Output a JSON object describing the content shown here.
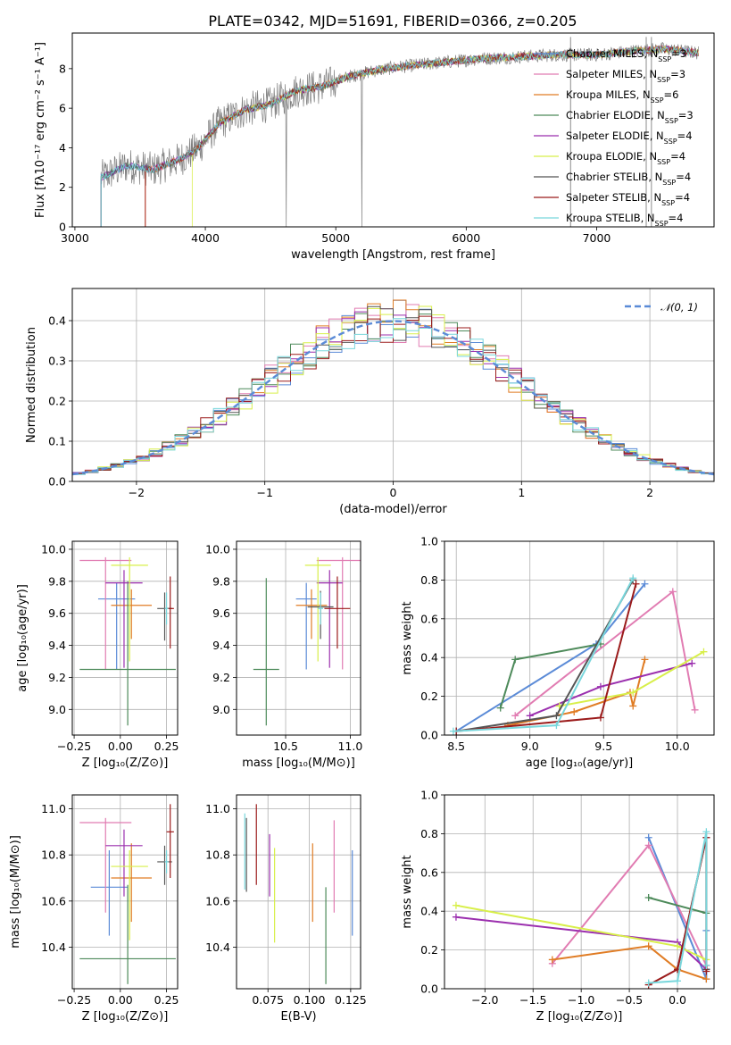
{
  "figure": {
    "title": "PLATE=0342, MJD=51691, FIBERID=0366, z=0.205",
    "models": [
      {
        "name": "Chabrier MILES",
        "nssp": "3",
        "color": "#5b8bd7"
      },
      {
        "name": "Salpeter MILES",
        "nssp": "3",
        "color": "#e17cb2"
      },
      {
        "name": "Kroupa MILES",
        "nssp": "6",
        "color": "#e07c24"
      },
      {
        "name": "Chabrier ELODIE",
        "nssp": "3",
        "color": "#4d8a5a"
      },
      {
        "name": "Salpeter ELODIE",
        "nssp": "4",
        "color": "#9b2fae"
      },
      {
        "name": "Kroupa ELODIE",
        "nssp": "4",
        "color": "#d8ef4a"
      },
      {
        "name": "Chabrier STELIB",
        "nssp": "4",
        "color": "#555555"
      },
      {
        "name": "Salpeter STELIB",
        "nssp": "4",
        "color": "#9b1b1b"
      },
      {
        "name": "Kroupa STELIB",
        "nssp": "4",
        "color": "#79d7dc"
      }
    ]
  },
  "chart_data": [
    {
      "id": "spectrum",
      "type": "line",
      "xlabel": "wavelength [Angstrom, rest frame]",
      "ylabel": "Flux [fλ10⁻¹⁷ erg cm⁻² s⁻¹ A⁻¹]",
      "xlim": [
        2980,
        7900
      ],
      "ylim": [
        0,
        9.8
      ],
      "xticks": [
        3000,
        4000,
        5000,
        6000,
        7000
      ],
      "yticks": [
        0,
        2,
        4,
        6,
        8
      ],
      "legend_position": "top-right",
      "continuum_x": [
        3200,
        3400,
        3600,
        3800,
        3950,
        4100,
        4300,
        4500,
        4700,
        4900,
        5100,
        5300,
        5500,
        5800,
        6100,
        6400,
        6700,
        7000,
        7300,
        7500,
        7780
      ],
      "continuum_y": [
        2.5,
        3.1,
        2.9,
        3.4,
        4.0,
        5.2,
        5.9,
        6.2,
        6.9,
        7.1,
        7.6,
        7.9,
        8.1,
        8.3,
        8.5,
        8.6,
        8.7,
        8.7,
        8.9,
        9.0,
        8.8
      ],
      "data_line": {
        "name": "data",
        "color": "#808080"
      }
    },
    {
      "id": "residuals",
      "type": "line",
      "xlabel": "(data-model)/error",
      "ylabel": "Normed distribution",
      "xlim": [
        -2.5,
        2.5
      ],
      "ylim": [
        0,
        0.48
      ],
      "xticks": [
        -2,
        -1,
        0,
        1,
        2
      ],
      "yticks": [
        0.0,
        0.1,
        0.2,
        0.3,
        0.4
      ],
      "legend_position": "top-right",
      "reference": {
        "name": "N(0,1)",
        "color": "#5b8bd7"
      }
    },
    {
      "id": "age-z",
      "type": "scatter",
      "xlabel": "Z [log₁₀(Z/Z⊙)]",
      "ylabel": "age  [log₁₀(age/yr)]",
      "xlim": [
        -0.26,
        0.31
      ],
      "ylim": [
        8.84,
        10.05
      ],
      "xticks": [
        -0.25,
        0.0,
        0.25
      ],
      "yticks": [
        9.0,
        9.2,
        9.4,
        9.6,
        9.8,
        10.0
      ],
      "points": [
        {
          "x": -0.02,
          "y": 9.69,
          "xerr": 0.1,
          "yerr": [
            0.44,
            0.1
          ],
          "c": 0
        },
        {
          "x": -0.08,
          "y": 9.93,
          "xerr": 0.14,
          "yerr": [
            0.68,
            0.02
          ],
          "c": 1
        },
        {
          "x": 0.06,
          "y": 9.65,
          "xerr": 0.11,
          "yerr": [
            0.21,
            0.1
          ],
          "c": 2
        },
        {
          "x": 0.04,
          "y": 9.25,
          "xerr": 0.26,
          "yerr": [
            0.35,
            0.55
          ],
          "c": 3
        },
        {
          "x": 0.02,
          "y": 9.79,
          "xerr": 0.1,
          "yerr": [
            0.53,
            0.08
          ],
          "c": 4
        },
        {
          "x": 0.05,
          "y": 9.9,
          "xerr": 0.1,
          "yerr": [
            0.6,
            0.05
          ],
          "c": 5
        },
        {
          "x": 0.24,
          "y": 9.63,
          "xerr": 0.04,
          "yerr": [
            0.2,
            0.1
          ],
          "c": 6
        },
        {
          "x": 0.27,
          "y": 9.63,
          "xerr": 0.02,
          "yerr": [
            0.25,
            0.2
          ],
          "c": 7
        },
        {
          "x": 0.25,
          "y": 9.63,
          "xerr": 0.01,
          "yerr": [
            0.1,
            0.1
          ],
          "c": 8
        }
      ]
    },
    {
      "id": "age-mass",
      "type": "scatter",
      "xlabel": "mass [log₁₀(M/M⊙)]",
      "ylabel": "",
      "xlim": [
        10.12,
        11.08
      ],
      "ylim": [
        8.84,
        10.05
      ],
      "xticks": [
        10.5,
        11.0
      ],
      "yticks": [
        9.0,
        9.2,
        9.4,
        9.6,
        9.8,
        10.0
      ],
      "points": [
        {
          "x": 10.66,
          "y": 9.69,
          "xerr": 0.08,
          "yerr": [
            0.44,
            0.1
          ],
          "c": 0
        },
        {
          "x": 10.94,
          "y": 9.93,
          "xerr": 0.2,
          "yerr": [
            0.68,
            0.02
          ],
          "c": 1
        },
        {
          "x": 10.7,
          "y": 9.65,
          "xerr": 0.12,
          "yerr": [
            0.21,
            0.1
          ],
          "c": 2
        },
        {
          "x": 10.35,
          "y": 9.25,
          "xerr": 0.1,
          "yerr": [
            0.35,
            0.57
          ],
          "c": 3
        },
        {
          "x": 10.84,
          "y": 9.79,
          "xerr": 0.1,
          "yerr": [
            0.53,
            0.08
          ],
          "c": 4
        },
        {
          "x": 10.75,
          "y": 9.9,
          "xerr": 0.1,
          "yerr": [
            0.6,
            0.05
          ],
          "c": 5
        },
        {
          "x": 10.77,
          "y": 9.64,
          "xerr": 0.1,
          "yerr": [
            0.2,
            0.1
          ],
          "c": 6
        },
        {
          "x": 10.9,
          "y": 9.63,
          "xerr": 0.1,
          "yerr": [
            0.25,
            0.2
          ],
          "c": 7
        },
        {
          "x": 10.77,
          "y": 9.63,
          "xerr": 0.02,
          "yerr": [
            0.1,
            0.1
          ],
          "c": 8
        }
      ]
    },
    {
      "id": "weight-age",
      "type": "line",
      "xlabel": "age  [log₁₀(age/yr)]",
      "ylabel": "mass weight",
      "xlim": [
        8.42,
        10.25
      ],
      "ylim": [
        0,
        1.0
      ],
      "xticks": [
        8.5,
        9.0,
        9.5,
        10.0
      ],
      "yticks": [
        0.0,
        0.2,
        0.4,
        0.6,
        0.8,
        1.0
      ],
      "series": [
        {
          "x": [
            8.5,
            9.45,
            9.78
          ],
          "y": [
            0.02,
            0.47,
            0.78
          ],
          "c": 0
        },
        {
          "x": [
            8.9,
            9.97,
            10.12
          ],
          "y": [
            0.1,
            0.74,
            0.13
          ],
          "c": 1
        },
        {
          "x": [
            8.85,
            9.3,
            9.68,
            9.7,
            9.78
          ],
          "y": [
            0.05,
            0.12,
            0.22,
            0.15,
            0.39
          ],
          "c": 2
        },
        {
          "x": [
            8.8,
            8.9,
            9.48
          ],
          "y": [
            0.14,
            0.39,
            0.47
          ],
          "c": 3
        },
        {
          "x": [
            9.0,
            9.48,
            10.1
          ],
          "y": [
            0.1,
            0.25,
            0.37
          ],
          "c": 4
        },
        {
          "x": [
            9.2,
            9.7,
            10.18
          ],
          "y": [
            0.15,
            0.22,
            0.43
          ],
          "c": 5
        },
        {
          "x": [
            8.5,
            9.18,
            9.7
          ],
          "y": [
            0.02,
            0.1,
            0.8
          ],
          "c": 6
        },
        {
          "x": [
            8.5,
            9.48,
            9.72
          ],
          "y": [
            0.02,
            0.09,
            0.78
          ],
          "c": 7
        },
        {
          "x": [
            8.48,
            9.18,
            9.7
          ],
          "y": [
            0.02,
            0.05,
            0.81
          ],
          "c": 8
        }
      ]
    },
    {
      "id": "mass-z",
      "type": "scatter",
      "xlabel": "Z [log₁₀(Z/Z⊙)]",
      "ylabel": "mass [log₁₀(M/M⊙)]",
      "xlim": [
        -0.26,
        0.31
      ],
      "ylim": [
        10.22,
        11.06
      ],
      "xticks": [
        -0.25,
        0.0,
        0.25
      ],
      "yticks": [
        10.4,
        10.6,
        10.8,
        11.0
      ],
      "points": [
        {
          "x": -0.06,
          "y": 10.66,
          "xerr": 0.1,
          "yerr": [
            0.21,
            0.16
          ],
          "c": 0
        },
        {
          "x": -0.08,
          "y": 10.94,
          "xerr": 0.14,
          "yerr": [
            0.39,
            0.02
          ],
          "c": 1
        },
        {
          "x": 0.06,
          "y": 10.7,
          "xerr": 0.11,
          "yerr": [
            0.19,
            0.15
          ],
          "c": 2
        },
        {
          "x": 0.04,
          "y": 10.35,
          "xerr": 0.26,
          "yerr": [
            0.11,
            0.32
          ],
          "c": 3
        },
        {
          "x": 0.02,
          "y": 10.84,
          "xerr": 0.1,
          "yerr": [
            0.22,
            0.07
          ],
          "c": 4
        },
        {
          "x": 0.05,
          "y": 10.75,
          "xerr": 0.1,
          "yerr": [
            0.32,
            0.07
          ],
          "c": 5
        },
        {
          "x": 0.24,
          "y": 10.77,
          "xerr": 0.04,
          "yerr": [
            0.1,
            0.07
          ],
          "c": 6
        },
        {
          "x": 0.27,
          "y": 10.9,
          "xerr": 0.02,
          "yerr": [
            0.2,
            0.12
          ],
          "c": 7
        },
        {
          "x": 0.25,
          "y": 10.77,
          "xerr": 0.01,
          "yerr": [
            0.05,
            0.05
          ],
          "c": 8
        }
      ]
    },
    {
      "id": "mass-ebv",
      "type": "scatter",
      "xlabel": "E(B-V)",
      "ylabel": "",
      "xlim": [
        0.056,
        0.131
      ],
      "ylim": [
        10.22,
        11.06
      ],
      "xticks": [
        0.075,
        0.1,
        0.125
      ],
      "yticks": [
        10.4,
        10.6,
        10.8,
        11.0
      ],
      "points": [
        {
          "x": 0.126,
          "y": 10.66,
          "xerr": 0,
          "yerr": [
            0.21,
            0.16
          ],
          "c": 0
        },
        {
          "x": 0.115,
          "y": 10.75,
          "xerr": 0,
          "yerr": [
            0.2,
            0.2
          ],
          "c": 1
        },
        {
          "x": 0.102,
          "y": 10.7,
          "xerr": 0,
          "yerr": [
            0.19,
            0.15
          ],
          "c": 2
        },
        {
          "x": 0.11,
          "y": 10.45,
          "xerr": 0,
          "yerr": [
            0.21,
            0.21
          ],
          "c": 3
        },
        {
          "x": 0.076,
          "y": 10.77,
          "xerr": 0,
          "yerr": [
            0.15,
            0.12
          ],
          "c": 4
        },
        {
          "x": 0.079,
          "y": 10.63,
          "xerr": 0,
          "yerr": [
            0.21,
            0.2
          ],
          "c": 5
        },
        {
          "x": 0.062,
          "y": 10.8,
          "xerr": 0,
          "yerr": [
            0.16,
            0.16
          ],
          "c": 6
        },
        {
          "x": 0.068,
          "y": 10.87,
          "xerr": 0,
          "yerr": [
            0.2,
            0.15
          ],
          "c": 7
        },
        {
          "x": 0.061,
          "y": 10.8,
          "xerr": 0,
          "yerr": [
            0.15,
            0.18
          ],
          "c": 8
        }
      ]
    },
    {
      "id": "weight-z",
      "type": "line",
      "xlabel": "Z [log₁₀(Z/Z⊙)]",
      "ylabel": "mass weight",
      "xlim": [
        -2.42,
        0.38
      ],
      "ylim": [
        0,
        1.0
      ],
      "xticks": [
        -2.0,
        -1.5,
        -1.0,
        -0.5,
        0.0
      ],
      "yticks": [
        0.0,
        0.2,
        0.4,
        0.6,
        0.8,
        1.0
      ],
      "series": [
        {
          "x": [
            -0.3,
            0.3,
            0.3
          ],
          "y": [
            0.78,
            0.05,
            0.3
          ],
          "c": 0
        },
        {
          "x": [
            -1.3,
            -0.3,
            0.3
          ],
          "y": [
            0.13,
            0.74,
            0.12
          ],
          "c": 1
        },
        {
          "x": [
            -1.3,
            -0.3,
            0.0,
            0.3
          ],
          "y": [
            0.15,
            0.22,
            0.1,
            0.05
          ],
          "c": 2
        },
        {
          "x": [
            -0.3,
            0.3
          ],
          "y": [
            0.47,
            0.39
          ],
          "c": 3
        },
        {
          "x": [
            -2.3,
            0.0,
            0.3
          ],
          "y": [
            0.37,
            0.24,
            0.1
          ],
          "c": 4
        },
        {
          "x": [
            -2.3,
            0.0,
            0.3
          ],
          "y": [
            0.43,
            0.22,
            0.15
          ],
          "c": 5
        },
        {
          "x": [
            0.0,
            0.3,
            0.3
          ],
          "y": [
            0.1,
            0.78,
            0.1
          ],
          "c": 6
        },
        {
          "x": [
            -0.3,
            0.0,
            0.3,
            0.3
          ],
          "y": [
            0.02,
            0.1,
            0.78,
            0.09
          ],
          "c": 7
        },
        {
          "x": [
            -0.3,
            0.0,
            0.3,
            0.3
          ],
          "y": [
            0.03,
            0.04,
            0.81,
            0.12
          ],
          "c": 8
        }
      ]
    }
  ]
}
